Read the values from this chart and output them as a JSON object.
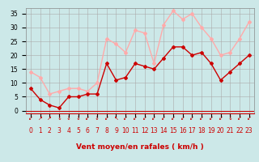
{
  "hours": [
    0,
    1,
    2,
    3,
    4,
    5,
    6,
    7,
    8,
    9,
    10,
    11,
    12,
    13,
    14,
    15,
    16,
    17,
    18,
    19,
    20,
    21,
    22,
    23
  ],
  "wind_mean": [
    8,
    4,
    2,
    1,
    5,
    5,
    6,
    6,
    17,
    11,
    12,
    17,
    16,
    15,
    19,
    23,
    23,
    20,
    21,
    17,
    11,
    14,
    17,
    20
  ],
  "wind_gust": [
    14,
    12,
    6,
    7,
    8,
    8,
    7,
    10,
    26,
    24,
    21,
    29,
    28,
    17,
    31,
    36,
    33,
    35,
    30,
    26,
    20,
    21,
    26,
    32
  ],
  "mean_color": "#cc0000",
  "gust_color": "#ffaaaa",
  "bg_color": "#cce8e8",
  "grid_color": "#aaaaaa",
  "xlabel": "Vent moyen/en rafales ( km/h )",
  "ylim": [
    -1,
    37
  ],
  "yticks": [
    0,
    5,
    10,
    15,
    20,
    25,
    30,
    35
  ],
  "tick_fontsize": 5.5,
  "label_fontsize": 6.5,
  "arrow_chars": [
    "↙",
    "↗",
    "↗",
    "↓",
    "↓",
    "↓",
    "↙",
    "↓",
    "↙",
    "↖",
    "↙",
    "↙",
    "↙",
    "↙",
    "↙",
    "↙",
    "↙",
    "↙",
    "↙",
    "↙",
    "↙",
    "↓",
    "↙",
    "↙"
  ]
}
